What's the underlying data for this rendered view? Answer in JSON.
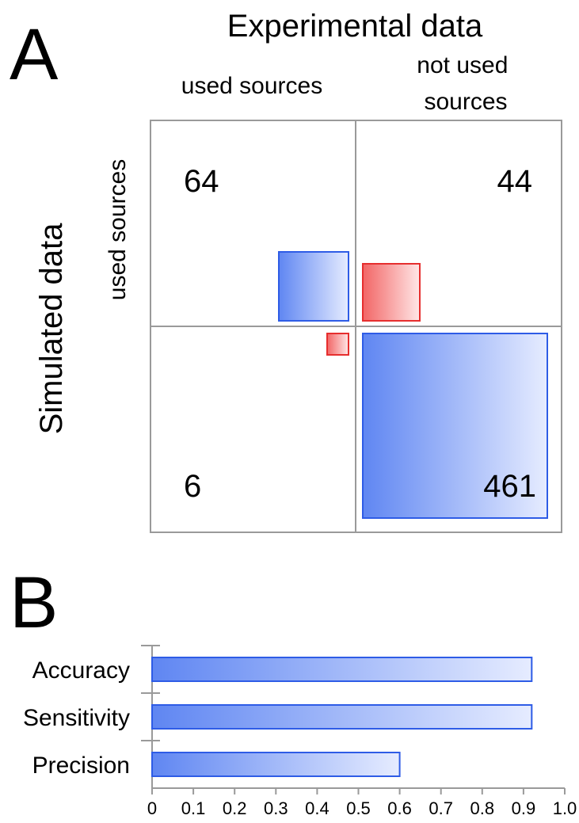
{
  "chart_data": [
    {
      "type": "heatmap",
      "panel": "A",
      "title": "Experimental data",
      "ylabel": "Simulated data",
      "columns": [
        "used sources",
        "not used sources"
      ],
      "rows": [
        "used sources",
        "not used sources"
      ],
      "values": [
        [
          64,
          44
        ],
        [
          6,
          461
        ]
      ],
      "box_colors": [
        [
          "blue",
          "red"
        ],
        [
          "red",
          "blue"
        ]
      ]
    },
    {
      "type": "bar",
      "panel": "B",
      "orientation": "horizontal",
      "categories": [
        "Accuracy",
        "Sensitivity",
        "Precision"
      ],
      "values": [
        0.92,
        0.92,
        0.6
      ],
      "xlim": [
        0,
        1.0
      ],
      "xticks": [
        "0",
        "0.1",
        "0.2",
        "0.3",
        "0.4",
        "0.5",
        "0.6",
        "0.7",
        "0.8",
        "0.9",
        "1.0"
      ],
      "color": "#3f6fe8"
    }
  ],
  "colors": {
    "blue": "#2e5ce6",
    "red": "#e62e2e",
    "grid": "#9a9a9a"
  }
}
